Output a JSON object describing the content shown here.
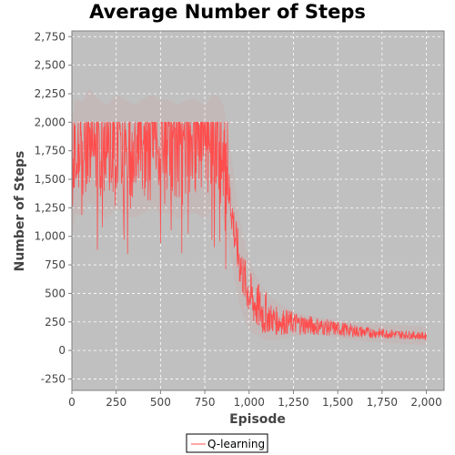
{
  "chart_data": {
    "type": "line",
    "title": "Average Number of Steps",
    "xlabel": "Episode",
    "ylabel": "Number of Steps",
    "xlim": [
      0,
      2100
    ],
    "ylim": [
      -350,
      2800
    ],
    "x_ticks": [
      0,
      250,
      500,
      750,
      1000,
      1250,
      1500,
      1750,
      2000
    ],
    "x_tick_labels": [
      "0",
      "250",
      "500",
      "750",
      "1,000",
      "1,250",
      "1,500",
      "1,750",
      "2,000"
    ],
    "y_ticks": [
      -250,
      0,
      250,
      500,
      750,
      1000,
      1250,
      1500,
      1750,
      2000,
      2250,
      2500,
      2750
    ],
    "y_tick_labels": [
      "-250",
      "0",
      "250",
      "500",
      "750",
      "1,000",
      "1,250",
      "1,500",
      "1,750",
      "2,000",
      "2,250",
      "2,500",
      "2,750"
    ],
    "grid": true,
    "legend_position": "bottom",
    "background_color": "#c0c0c0",
    "grid_color": "#ffffff",
    "series": [
      {
        "name": "Q-learning",
        "color": "#ff4d4d",
        "x": [
          0,
          25,
          50,
          100,
          150,
          200,
          250,
          300,
          350,
          400,
          450,
          500,
          550,
          600,
          650,
          700,
          750,
          800,
          850,
          875,
          900,
          925,
          950,
          975,
          1000,
          1025,
          1050,
          1075,
          1100,
          1150,
          1200,
          1250,
          1300,
          1350,
          1400,
          1450,
          1500,
          1550,
          1600,
          1650,
          1700,
          1750,
          1800,
          1850,
          1900,
          1950,
          2000
        ],
        "y": [
          1500,
          1750,
          1650,
          1800,
          1700,
          1650,
          1750,
          1700,
          1650,
          1700,
          1750,
          1700,
          1700,
          1650,
          1700,
          1700,
          1650,
          1750,
          1700,
          1500,
          1250,
          950,
          750,
          600,
          500,
          420,
          380,
          330,
          300,
          260,
          250,
          240,
          230,
          220,
          210,
          200,
          190,
          180,
          170,
          160,
          155,
          150,
          145,
          140,
          135,
          130,
          125
        ]
      }
    ]
  }
}
